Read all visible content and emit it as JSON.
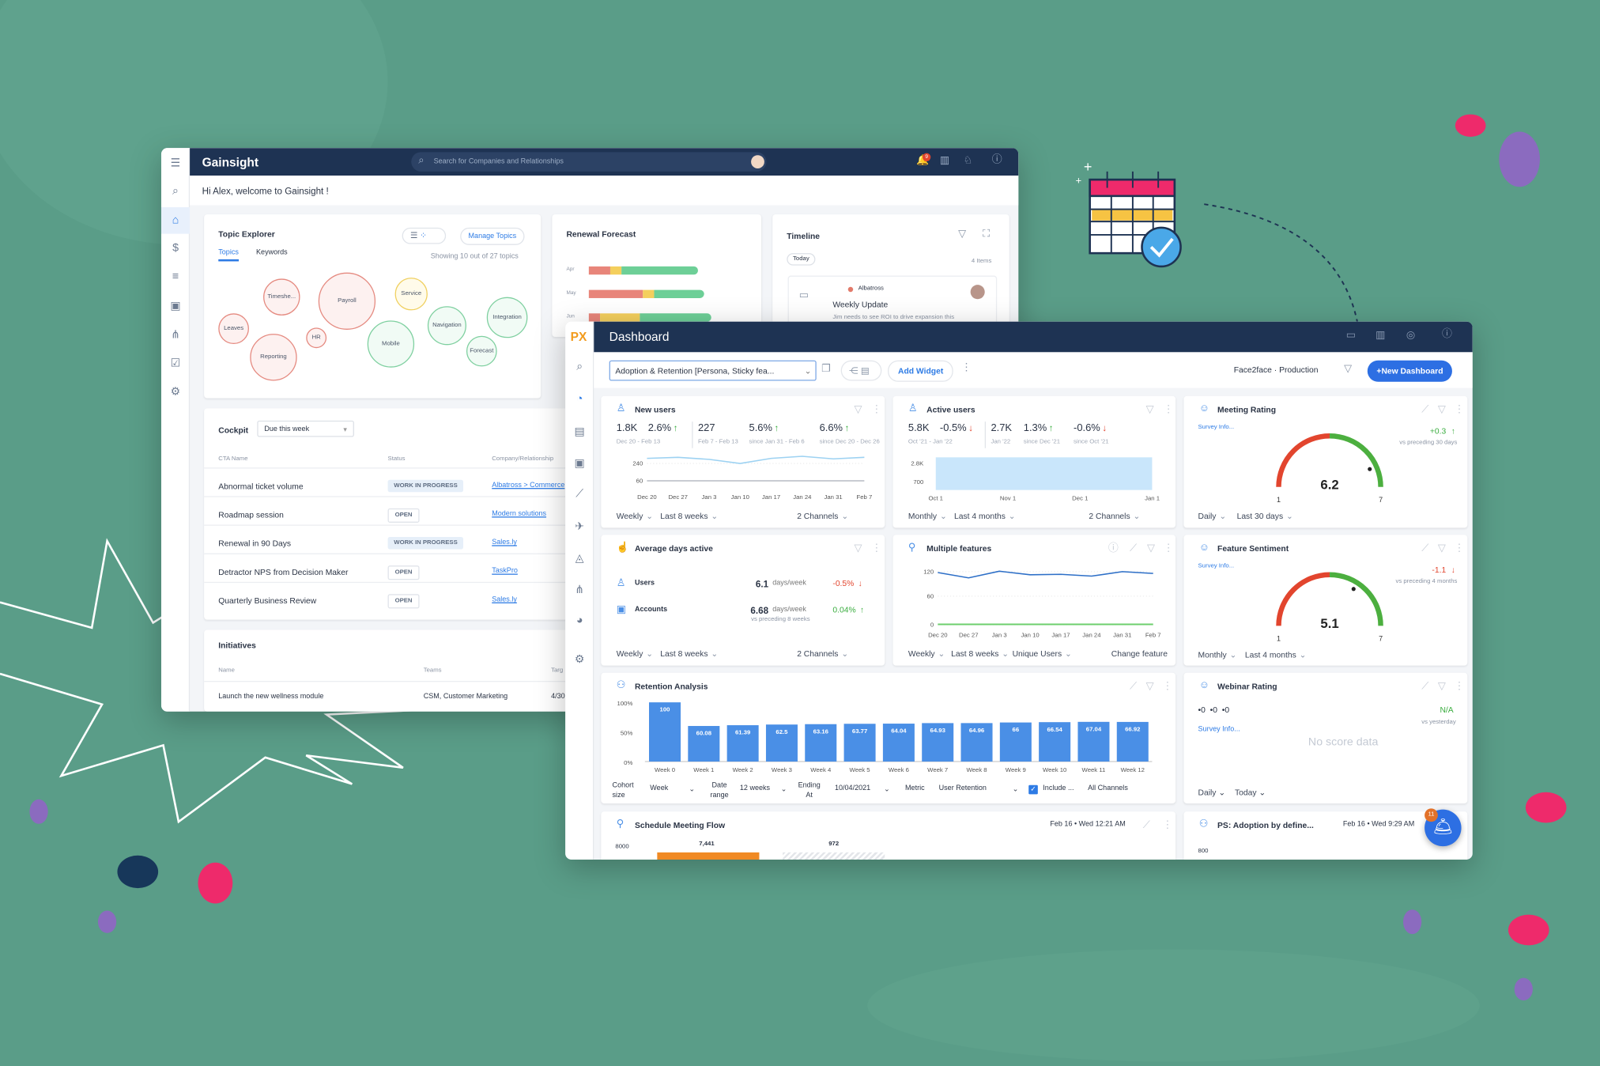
{
  "colors": {
    "background": "#5a9d88",
    "navy": "#1e3353",
    "accent": "#2d7be5",
    "bar": "#4a8fe6",
    "red": "#e2452e",
    "green": "#3aad3f",
    "pink": "#ee2a6b",
    "purple": "#8b6bbf"
  },
  "back_window": {
    "logo": "Gainsight",
    "search_placeholder": "Search for Companies and Relationships",
    "notification_badge": "9",
    "greeting": "Hi Alex, welcome to Gainsight !",
    "topic_explorer": {
      "title": "Topic Explorer",
      "tabs": [
        "Topics",
        "Keywords"
      ],
      "manage_label": "Manage Topics",
      "showing": "Showing 10 out of 27 topics",
      "bubbles": [
        {
          "label": "Timeshe...",
          "tone": "red"
        },
        {
          "label": "Payroll",
          "tone": "red"
        },
        {
          "label": "Service",
          "tone": "yellow"
        },
        {
          "label": "Leaves",
          "tone": "red"
        },
        {
          "label": "HR",
          "tone": "red"
        },
        {
          "label": "Reporting",
          "tone": "red"
        },
        {
          "label": "Mobile",
          "tone": "green"
        },
        {
          "label": "Navigation",
          "tone": "green"
        },
        {
          "label": "Integration",
          "tone": "green"
        },
        {
          "label": "Forecast",
          "tone": "green"
        }
      ]
    },
    "renewal_forecast": {
      "title": "Renewal Forecast",
      "rows": [
        {
          "label": "Apr",
          "segments": [
            0.2,
            0.1,
            0.7
          ]
        },
        {
          "label": "May",
          "segments": [
            0.47,
            0.1,
            0.43
          ]
        },
        {
          "label": "Jun",
          "segments": [
            0.09,
            0.33,
            0.58
          ]
        }
      ]
    },
    "timeline": {
      "title": "Timeline",
      "today": "Today",
      "count": "4 Items",
      "company": "Albatross",
      "entry_title": "Weekly Update",
      "entry_text": "Jim needs to see ROI to drive expansion this"
    },
    "cockpit": {
      "title": "Cockpit",
      "filter": "Due this week",
      "columns": [
        "CTA Name",
        "Status",
        "Company/Relationship"
      ],
      "rows": [
        {
          "name": "Abnormal ticket volume",
          "status": "WORK IN PROGRESS",
          "company": "Albatross > Commerce"
        },
        {
          "name": "Roadmap session",
          "status": "OPEN",
          "company": "Modern solutions"
        },
        {
          "name": "Renewal in 90 Days",
          "status": "WORK IN PROGRESS",
          "company": "Sales.ly"
        },
        {
          "name": "Detractor NPS from Decision Maker",
          "status": "OPEN",
          "company": "TaskPro"
        },
        {
          "name": "Quarterly Business Review",
          "status": "OPEN",
          "company": "Sales.ly"
        }
      ]
    },
    "initiatives": {
      "title": "Initiatives",
      "columns": [
        "Name",
        "Teams",
        "Targ"
      ],
      "rows": [
        {
          "name": "Launch the new wellness module",
          "teams": "CSM, Customer Marketing",
          "target": "4/30"
        }
      ]
    }
  },
  "front_window": {
    "logo": "PX",
    "title": "Dashboard",
    "dashboard_select": "Adoption & Retention [Persona, Sticky fea...",
    "add_widget": "Add Widget",
    "environment": "Face2face · Production",
    "new_dashboard": "+New Dashboard",
    "new_users": {
      "title": "New users",
      "stats": [
        {
          "value": "1.8K",
          "sub": "Dec 20 - Feb 13"
        },
        {
          "value": "2.6%",
          "dir": "up"
        },
        {
          "value": "227",
          "sub": "Feb 7 - Feb 13"
        },
        {
          "value": "5.6%",
          "dir": "up",
          "sub": "since Jan 31 - Feb 6"
        },
        {
          "value": "6.6%",
          "dir": "up",
          "sub": "since Dec 20 - Dec 26"
        }
      ],
      "y_ticks": [
        "240",
        "60"
      ],
      "x_ticks": [
        "Dec 20",
        "Dec 27",
        "Jan 3",
        "Jan 10",
        "Jan 17",
        "Jan 24",
        "Jan 31",
        "Feb 7"
      ],
      "series": [
        {
          "values": [
            250,
            252,
            248,
            240,
            250,
            254,
            249,
            252
          ]
        },
        {
          "values": [
            60,
            60,
            60,
            60,
            60,
            60,
            60,
            60
          ]
        }
      ],
      "controls": [
        "Weekly",
        "Last 8 weeks",
        "2 Channels"
      ]
    },
    "active_users": {
      "title": "Active users",
      "stats": [
        {
          "value": "5.8K",
          "sub": "Oct '21 - Jan '22"
        },
        {
          "value": "-0.5%",
          "dir": "down"
        },
        {
          "value": "2.7K",
          "sub": "Jan '22"
        },
        {
          "value": "1.3%",
          "dir": "up",
          "sub": "since Dec '21"
        },
        {
          "value": "-0.6%",
          "dir": "down",
          "sub": "since Oct '21"
        }
      ],
      "y_ticks": [
        "2.8K",
        "700"
      ],
      "x_ticks": [
        "Oct 1",
        "Nov 1",
        "Dec 1",
        "Jan 1"
      ],
      "controls": [
        "Monthly",
        "Last 4 months",
        "2 Channels"
      ]
    },
    "meeting_rating": {
      "title": "Meeting Rating",
      "survey": "Survey Info...",
      "score": "6.2",
      "score_value": 6.2,
      "min": "1",
      "max": "7",
      "delta": "+0.3",
      "delta_dir": "up",
      "vs": "vs preceding 30 days",
      "controls": [
        "Daily",
        "Last 30 days"
      ]
    },
    "avg_days_active": {
      "title": "Average days active",
      "rows": [
        {
          "label": "Users",
          "value": "6.1",
          "unit": "days/week",
          "delta": "-0.5%",
          "dir": "down"
        },
        {
          "label": "Accounts",
          "value": "6.68",
          "unit": "days/week",
          "delta": "0.04%",
          "dir": "up"
        }
      ],
      "vs": "vs preceding 8 weeks",
      "controls": [
        "Weekly",
        "Last 8 weeks",
        "2 Channels"
      ]
    },
    "multiple_features": {
      "title": "Multiple features",
      "y_ticks": [
        "120",
        "60",
        "0"
      ],
      "x_ticks": [
        "Dec 20",
        "Dec 27",
        "Jan 3",
        "Jan 10",
        "Jan 17",
        "Jan 24",
        "Jan 31",
        "Feb 7"
      ],
      "series": [
        {
          "values": [
            118,
            106,
            121,
            113,
            114,
            110,
            120,
            116
          ]
        },
        {
          "values": [
            1,
            1,
            1,
            1,
            1,
            1,
            1,
            1
          ]
        }
      ],
      "controls": [
        "Weekly",
        "Last 8 weeks",
        "Unique Users",
        "Change feature"
      ]
    },
    "feature_sentiment": {
      "title": "Feature Sentiment",
      "survey": "Survey Info...",
      "score": "5.1",
      "score_value": 5.1,
      "min": "1",
      "max": "7",
      "delta": "-1.1",
      "delta_dir": "down",
      "vs": "vs preceding 4 months",
      "controls": [
        "Monthly",
        "Last 4 months"
      ]
    },
    "retention": {
      "title": "Retention Analysis",
      "y_ticks": [
        "100%",
        "50%",
        "0%"
      ],
      "categories": [
        "Week 0",
        "Week 1",
        "Week 2",
        "Week 3",
        "Week 4",
        "Week 5",
        "Week 6",
        "Week 7",
        "Week 8",
        "Week 9",
        "Week 10",
        "Week 11",
        "Week 12"
      ],
      "values": [
        100,
        60.08,
        61.39,
        62.5,
        63.16,
        63.77,
        64.04,
        64.93,
        64.96,
        66,
        66.54,
        67.04,
        66.92
      ],
      "labels": [
        "100",
        "60.08",
        "61.39",
        "62.5",
        "63.16",
        "63.77",
        "64.04",
        "64.93",
        "64.96",
        "66",
        "66.54",
        "67.04",
        "66.92"
      ],
      "controls": {
        "cohort_label": "Cohort size",
        "cohort": "Week",
        "range_label": "Date range",
        "range": "12 weeks",
        "ending_label": "Ending At",
        "ending": "10/04/2021",
        "metric_label": "Metric",
        "metric": "User Retention",
        "include": "Include ...",
        "include_checked": true,
        "channels": "All Channels"
      }
    },
    "webinar": {
      "title": "Webinar Rating",
      "counts": "•0  •0  •0",
      "na": "N/A",
      "vs": "vs yesterday",
      "survey": "Survey Info...",
      "empty": "No score data",
      "controls": [
        "Daily",
        "Today"
      ]
    },
    "schedule": {
      "title": "Schedule Meeting Flow",
      "date": "Feb 16 • Wed 12:21 AM",
      "y_tick": "8000",
      "labels": [
        "7,441",
        "972"
      ]
    },
    "ps_adoption": {
      "title": "PS: Adoption by define...",
      "date": "Feb 16 • Wed 9:29 AM",
      "y_tick": "800",
      "badge": "11"
    }
  }
}
